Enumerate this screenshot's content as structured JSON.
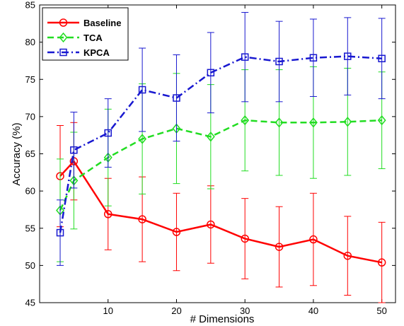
{
  "chart_data": {
    "type": "line",
    "xlabel": "# Dimensions",
    "ylabel": "Accuracy (%)",
    "xlim": [
      0,
      52
    ],
    "ylim": [
      45,
      85
    ],
    "xticks": [
      10,
      20,
      30,
      40,
      50
    ],
    "yticks": [
      45,
      50,
      55,
      60,
      65,
      70,
      75,
      80,
      85
    ],
    "legend_position": "top-left",
    "x": [
      3,
      5,
      10,
      15,
      20,
      25,
      30,
      35,
      40,
      45,
      50
    ],
    "series": [
      {
        "name": "Baseline",
        "color": "#ff0000",
        "line_style": "solid",
        "marker": "circle",
        "values": [
          62.0,
          64.0,
          56.9,
          56.2,
          54.5,
          55.5,
          53.6,
          52.5,
          53.5,
          51.3,
          50.4
        ],
        "errors": [
          6.8,
          5.2,
          4.8,
          5.7,
          5.2,
          5.2,
          5.4,
          5.4,
          6.2,
          5.3,
          5.4
        ]
      },
      {
        "name": "TCA",
        "color": "#22dd22",
        "line_style": "dashed",
        "marker": "diamond",
        "values": [
          57.4,
          61.4,
          64.5,
          67.0,
          68.4,
          67.3,
          69.5,
          69.2,
          69.2,
          69.3,
          69.5
        ],
        "errors": [
          6.9,
          6.5,
          6.5,
          7.4,
          7.4,
          7.0,
          6.8,
          7.1,
          7.5,
          7.2,
          6.5
        ]
      },
      {
        "name": "KPCA",
        "color": "#1818d0",
        "line_style": "dashdot",
        "marker": "square",
        "values": [
          54.4,
          65.5,
          67.8,
          73.6,
          72.5,
          75.9,
          78.0,
          77.4,
          77.9,
          78.1,
          77.8
        ],
        "errors": [
          4.4,
          5.1,
          4.6,
          5.6,
          5.8,
          5.4,
          6.0,
          5.4,
          5.2,
          5.2,
          5.4
        ]
      }
    ]
  }
}
